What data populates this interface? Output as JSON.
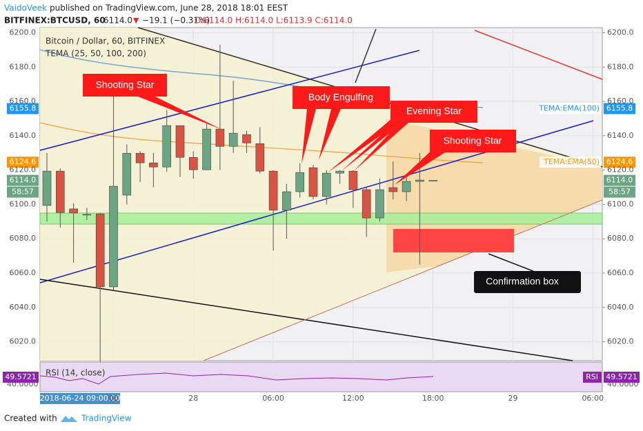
{
  "header": {
    "author": "VaidoVeek",
    "published": "published on TradingView.com, June 28, 2018 18:01 EEST",
    "symbol": "BITFINEX:BTCUSD, 60",
    "last": "6114.0",
    "arrow": "▼",
    "change": "−19.1 (−0.31%)",
    "ohlc": "O:6114.0 H:6114.0 L:6113.9 C:6114.0"
  },
  "chart_data": {
    "type": "candlestick",
    "legend": [
      "Bitcoin / Dollar, 60, BITFINEX",
      "TEMA (25, 50, 100, 200)"
    ],
    "up_color": "#6ba583",
    "down_color": "#d75442",
    "series": {
      "open": [
        6099.4,
        6119.4,
        6097.4,
        6094.2,
        6094.5,
        6052,
        6105.4,
        6129.8,
        6124.2,
        6121.8,
        6145.9,
        6127.4,
        6120.2,
        6143.9,
        6133.8,
        6140.7,
        6135.4,
        6119.4,
        6096.6,
        6107.4,
        6121.4,
        6104.6,
        6118.2,
        6119.4,
        6108.6,
        6092.1,
        6109.8,
        6107.4,
        6113.4,
        6114
      ],
      "high": [
        6130,
        6121,
        6100.6,
        6098,
        6095,
        6163,
        6135,
        6131,
        6130,
        6155,
        6146,
        6131,
        6147,
        6193,
        6172,
        6143,
        6145,
        6120,
        6112,
        6124,
        6123,
        6120,
        6120,
        6120,
        6110,
        6115,
        6125,
        6116,
        6130,
        6114
      ],
      "low": [
        6090,
        6086.5,
        6066,
        6091,
        6008,
        6050,
        6100,
        6113,
        6110,
        6119,
        6116,
        6115,
        6120,
        6120,
        6130,
        6130,
        6118,
        6073,
        6080,
        6104,
        6103,
        6100,
        6112,
        6098,
        6081,
        6090,
        6103,
        6102,
        6065,
        6114
      ],
      "close": [
        6119.4,
        6095.3,
        6095,
        6094.2,
        6052,
        6110.6,
        6129.8,
        6124.2,
        6121.8,
        6145.9,
        6127.4,
        6120.2,
        6143.9,
        6133.8,
        6141.5,
        6135.8,
        6119.4,
        6096.6,
        6107.4,
        6118.6,
        6104.6,
        6118.2,
        6119.4,
        6108.6,
        6092.1,
        6108.6,
        6107.4,
        6113.4,
        6114.2,
        6114
      ]
    },
    "ylim": [
      6009,
      6203
    ],
    "yticks": [
      {
        "value": 6020,
        "label": "6020.0"
      },
      {
        "value": 6040,
        "label": "6040.0"
      },
      {
        "value": 6060,
        "label": "6060.0"
      },
      {
        "value": 6080,
        "label": "6080.0"
      },
      {
        "value": 6100,
        "label": "6100.0"
      },
      {
        "value": 6120,
        "label": "6120.0"
      },
      {
        "value": 6140,
        "label": "6140.0"
      },
      {
        "value": 6160,
        "label": "6160.0"
      },
      {
        "value": 6180,
        "label": "6180.0"
      },
      {
        "value": 6200,
        "label": "6200.0"
      }
    ],
    "xticks": [
      {
        "value": 5,
        "label": "00"
      },
      {
        "value": 11,
        "label": "28"
      },
      {
        "value": 17,
        "label": "06:00"
      },
      {
        "value": 23,
        "label": "12:00"
      },
      {
        "value": 29,
        "label": "18:00"
      },
      {
        "value": 35,
        "label": "29"
      },
      {
        "value": 41,
        "label": "06:00"
      }
    ],
    "crosshair_label": "2018-06-24 09:00:00",
    "price_tags": [
      {
        "value": 6155.8,
        "label": "6155.8",
        "name": "TEMA:EMA(100)",
        "color": "#2196f3"
      },
      {
        "value": 6124.6,
        "label": "6124.6",
        "name": "TEMA:EMA(50)",
        "color": "#ff9800"
      },
      {
        "value": 6114,
        "label": "6114.0",
        "color": "#6ba583"
      }
    ],
    "countdown": "58:57",
    "annotations": [
      "Shooting Star",
      "Body Engulfing",
      "Evening  Star",
      "Shooting Star",
      "Confirmation box"
    ],
    "rsi": {
      "title": "RSI (14, close)",
      "tag": "RSI",
      "value": 49.5721,
      "color": "#8e24aa",
      "yticks": [
        {
          "value": 40,
          "label": "40.0000"
        }
      ]
    }
  },
  "footer": {
    "created": "Created with",
    "brand": "TradingView"
  }
}
